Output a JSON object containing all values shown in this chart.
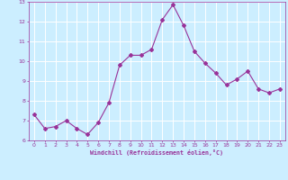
{
  "x": [
    0,
    1,
    2,
    3,
    4,
    5,
    6,
    7,
    8,
    9,
    10,
    11,
    12,
    13,
    14,
    15,
    16,
    17,
    18,
    19,
    20,
    21,
    22,
    23
  ],
  "y": [
    7.3,
    6.6,
    6.7,
    7.0,
    6.6,
    6.3,
    6.9,
    7.9,
    9.8,
    10.3,
    10.3,
    10.6,
    12.1,
    12.85,
    11.8,
    10.5,
    9.9,
    9.4,
    8.8,
    9.1,
    9.5,
    8.6,
    8.4,
    8.6
  ],
  "line_color": "#993399",
  "marker": "D",
  "markersize": 2,
  "linewidth": 0.8,
  "bg_color": "#cceeff",
  "grid_color": "#ffffff",
  "xlabel": "Windchill (Refroidissement éolien,°C)",
  "xlabel_color": "#993399",
  "tick_color": "#993399",
  "ylim": [
    6,
    13
  ],
  "xlim": [
    -0.5,
    23.5
  ],
  "yticks": [
    6,
    7,
    8,
    9,
    10,
    11,
    12,
    13
  ],
  "xticks": [
    0,
    1,
    2,
    3,
    4,
    5,
    6,
    7,
    8,
    9,
    10,
    11,
    12,
    13,
    14,
    15,
    16,
    17,
    18,
    19,
    20,
    21,
    22,
    23
  ]
}
